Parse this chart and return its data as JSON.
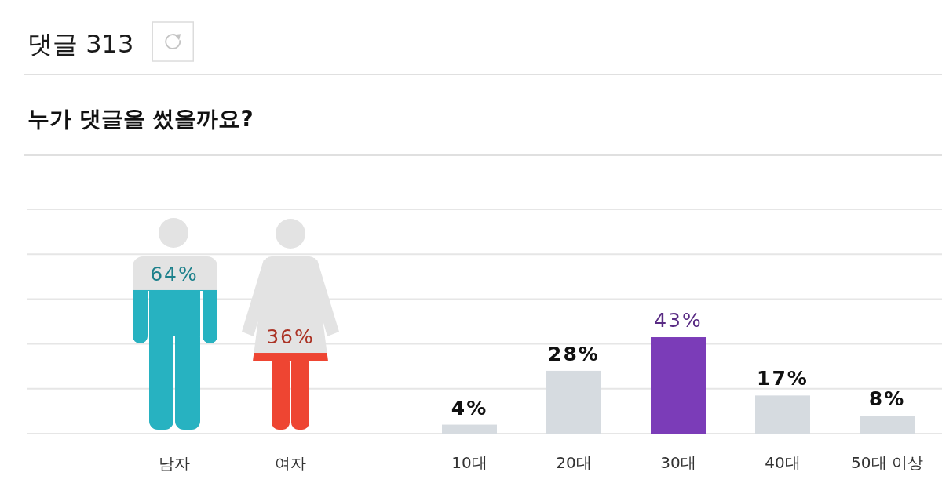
{
  "chart_data": [
    {
      "type": "other",
      "title": "댓글 313"
    },
    {
      "type": "bar",
      "title": "누가 댓글을 썼을까요?",
      "categories": [
        "남자",
        "여자"
      ],
      "values": [
        64,
        36
      ],
      "colors": [
        "#27b2c1",
        "#ee4532"
      ],
      "value_labels": [
        "64%",
        "36%"
      ],
      "ylim": [
        0,
        100
      ],
      "yticks": [
        0,
        20,
        40,
        60,
        80,
        100
      ],
      "tick_labels": "x",
      "grid": "y"
    },
    {
      "type": "bar",
      "categories": [
        "10대",
        "20대",
        "30대",
        "40대",
        "50대 이상"
      ],
      "values": [
        4,
        28,
        43,
        17,
        8
      ],
      "colors": [
        "#d6dbe0",
        "#d6dbe0",
        "#7b3cb8",
        "#d6dbe0",
        "#d6dbe0"
      ],
      "value_labels": [
        "4%",
        "28%",
        "43%",
        "17%",
        "8%"
      ],
      "ylim": [
        0,
        100
      ],
      "yticks": [
        0,
        20,
        40,
        60,
        80,
        100
      ],
      "tick_labels": "x",
      "grid": "y"
    }
  ]
}
